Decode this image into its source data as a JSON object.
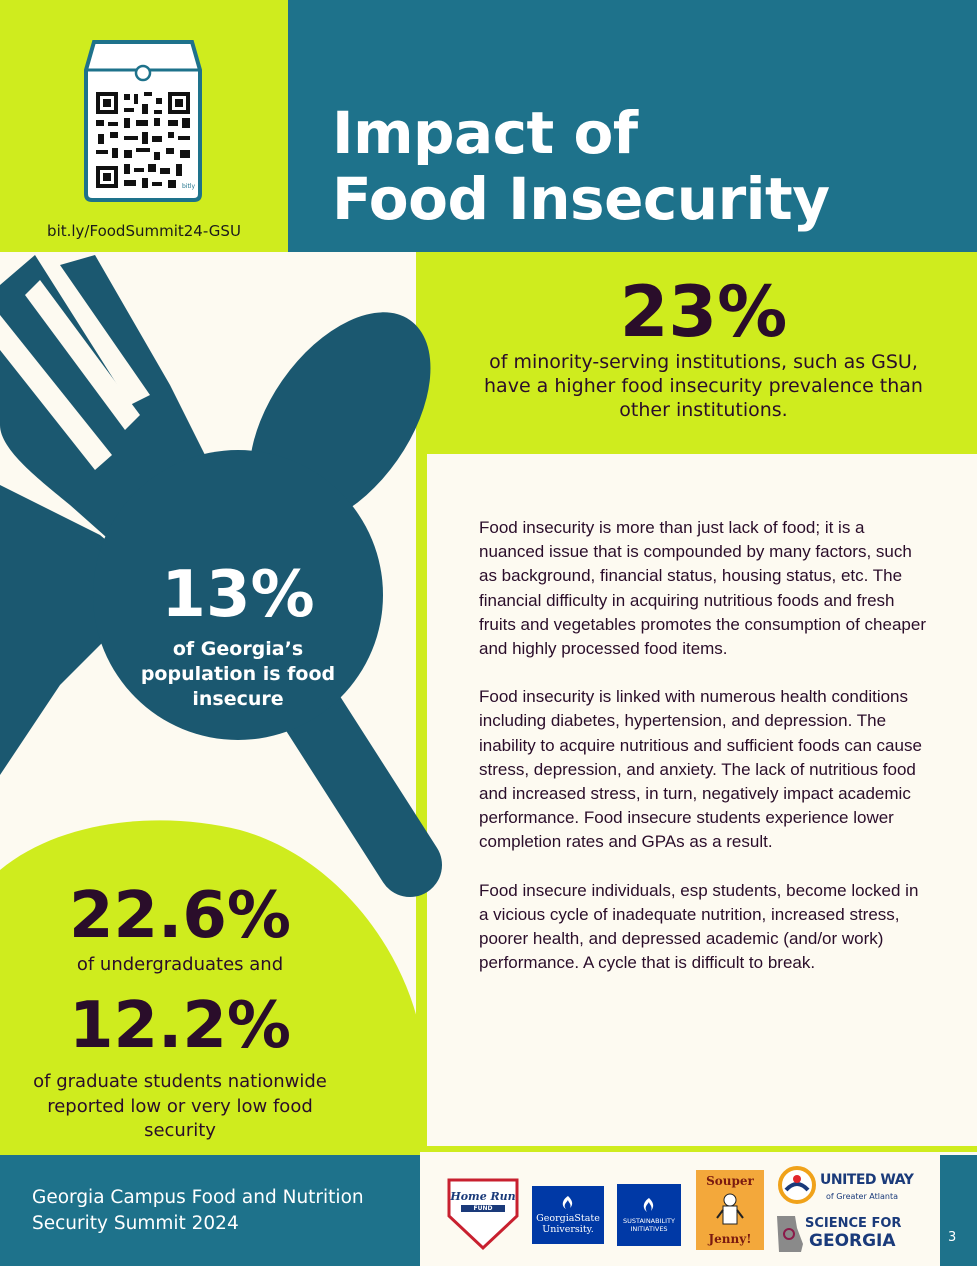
{
  "header": {
    "title_line1": "Impact of",
    "title_line2": "Food Insecurity",
    "qr_url": "bit.ly/FoodSummit24-GSU",
    "qr_brand": "bitly"
  },
  "stats": {
    "stat_23": {
      "value": "23%",
      "description": "of minority-serving institutions, such as GSU, have a higher food insecurity prevalence than other institutions."
    },
    "stat_13": {
      "value": "13%",
      "description": "of Georgia’s population is food insecure"
    },
    "stat_22_6": {
      "value": "22.6%",
      "description": "of undergraduates and"
    },
    "stat_12_2": {
      "value": "12.2%",
      "description": "of graduate students nationwide reported low or very low food security"
    }
  },
  "body": {
    "paragraphs": [
      "Food insecurity is more than just lack of food; it is a nuanced issue that is compounded by many factors, such as background, financial status, housing status, etc. The financial difficulty in acquiring nutritious foods and fresh fruits and vegetables promotes the consumption of cheaper and highly processed food items.",
      "Food insecurity is linked with numerous health conditions including diabetes, hypertension, and depression. The inability to acquire nutritious and sufficient foods can cause stress, depression, and anxiety. The lack of nutritious food and increased stress, in turn, negatively impact academic performance. Food insecure students experience lower completion rates and GPAs as a result.",
      "Food insecure individuals, esp students, become locked in a vicious cycle of inadequate nutrition, increased stress, poorer health, and depressed academic (and/or work) performance. A cycle that is difficult to break."
    ]
  },
  "footer": {
    "title": "Georgia Campus Food and Nutrition Security Summit 2024",
    "page_number": "3",
    "logos": {
      "home_run_line1": "Home Run",
      "home_run_line2": "FUND",
      "gsu_line1": "GeorgiaState",
      "gsu_line2": "University.",
      "sustainability_line1": "SUSTAINABILITY",
      "sustainability_line2": "INITIATIVES",
      "souper_line1": "Souper",
      "souper_line2": "Jenny!",
      "united_way_line1": "UNITED WAY",
      "united_way_line2": "of Greater Atlanta",
      "science_line1": "SCIENCE FOR",
      "science_line2": "GEORGIA"
    }
  },
  "colors": {
    "lime": "#cfec1e",
    "teal": "#1e728b",
    "dark_teal": "#1b5870",
    "cream": "#fdfaf1",
    "plum": "#2a0d2a"
  }
}
